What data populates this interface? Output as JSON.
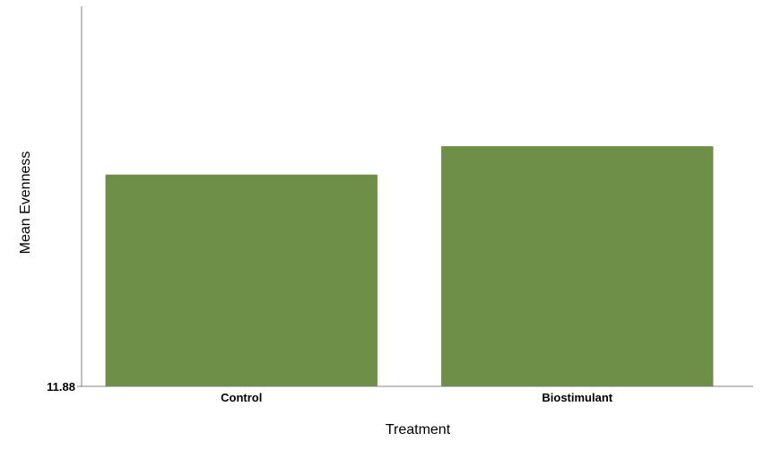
{
  "chart_data": {
    "type": "bar",
    "title": "",
    "xlabel": "Treatment",
    "ylabel": "Mean Evenness",
    "categories": [
      "Control",
      "Biostimulant"
    ],
    "values": [
      12.44,
      12.515
    ],
    "yticks": [
      "11.88"
    ],
    "ylim": [
      11.88,
      12.885
    ],
    "bar_color": "#6e8f47",
    "grid": false,
    "legend": "none"
  }
}
